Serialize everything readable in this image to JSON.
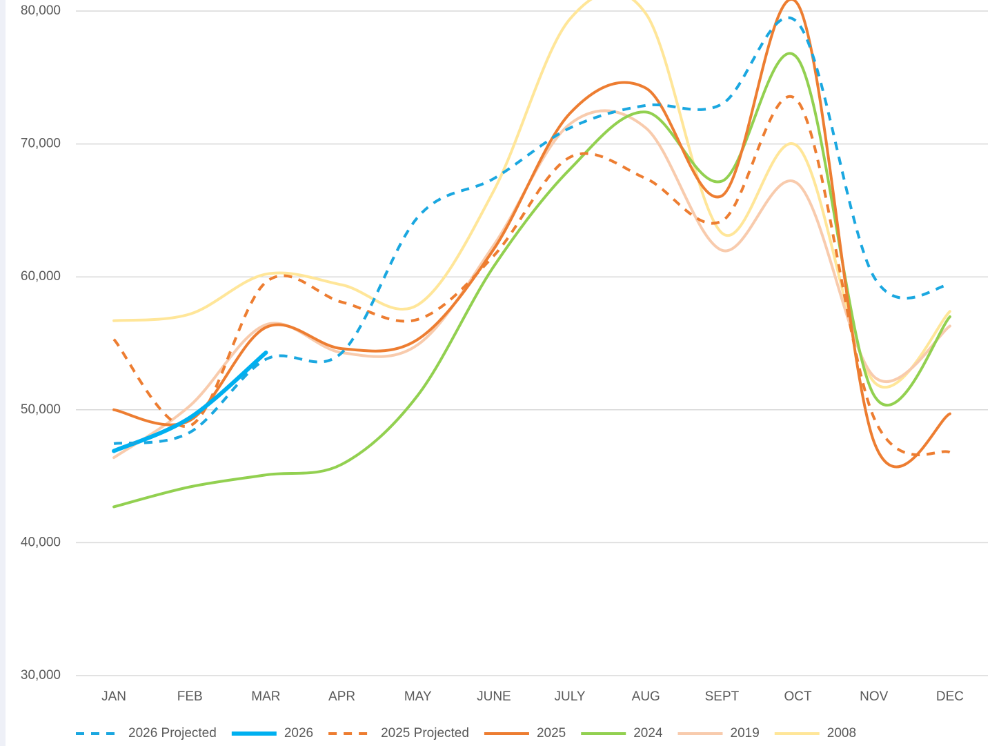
{
  "chart_data": {
    "type": "line",
    "categories": [
      "JAN",
      "FEB",
      "MAR",
      "APR",
      "MAY",
      "JUNE",
      "JULY",
      "AUG",
      "SEPT",
      "OCT",
      "NOV",
      "DEC"
    ],
    "ylim": [
      30000,
      80000
    ],
    "yticks": [
      {
        "value": 30000,
        "label": "30,000"
      },
      {
        "value": 40000,
        "label": "40,000"
      },
      {
        "value": 50000,
        "label": "50,000"
      },
      {
        "value": 60000,
        "label": "60,000"
      },
      {
        "value": 70000,
        "label": "70,000"
      },
      {
        "value": 80000,
        "label": "80,000"
      }
    ],
    "grid": true,
    "smooth": true,
    "legend": "bottom",
    "series": [
      {
        "name": "2026 Projected",
        "color": "#1aa7e0",
        "dashed": true,
        "values": [
          47450,
          48300,
          53800,
          54300,
          64500,
          67400,
          71200,
          72900,
          73000,
          79100,
          60000,
          59400
        ]
      },
      {
        "name": "2026",
        "color": "#00b0f0",
        "dashed": false,
        "values": [
          46900,
          49400,
          54300,
          null,
          null,
          null,
          null,
          null,
          null,
          null,
          null,
          null
        ]
      },
      {
        "name": "2025 Projected",
        "color": "#ed7d31",
        "dashed": true,
        "values": [
          55300,
          48800,
          59600,
          58100,
          56800,
          61600,
          69000,
          67400,
          64200,
          73200,
          49400,
          46800
        ]
      },
      {
        "name": "2025",
        "color": "#ed7d31",
        "dashed": false,
        "values": [
          50000,
          49200,
          56200,
          54600,
          55300,
          62100,
          72300,
          74200,
          66100,
          80500,
          47600,
          49700
        ]
      },
      {
        "name": "2024",
        "color": "#92d050",
        "dashed": false,
        "values": [
          42700,
          44200,
          45100,
          45900,
          51100,
          60800,
          68100,
          72400,
          67200,
          76400,
          51100,
          57000
        ]
      },
      {
        "name": "2019",
        "color": "#f8cbad",
        "dashed": false,
        "values": [
          46400,
          50300,
          56400,
          54300,
          54900,
          62400,
          71500,
          71200,
          62000,
          67000,
          52500,
          56300
        ]
      },
      {
        "name": "2008",
        "color": "#ffe699",
        "dashed": false,
        "values": [
          56700,
          57200,
          60200,
          59400,
          57900,
          66500,
          79400,
          79800,
          63300,
          69800,
          52100,
          57400
        ]
      }
    ]
  }
}
